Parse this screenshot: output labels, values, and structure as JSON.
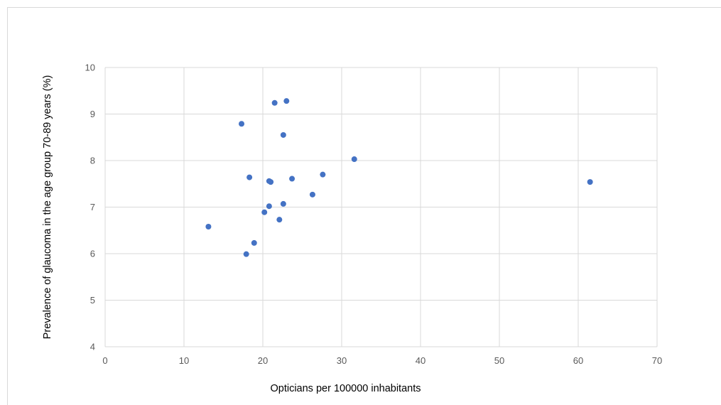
{
  "chart_data": {
    "type": "scatter",
    "title": "",
    "xlabel": "Opticians per 100000 inhabitants",
    "ylabel": "Prevalence of glaucoma in the age group 70-89 years (%)",
    "xlim": [
      0,
      70
    ],
    "ylim": [
      4,
      10
    ],
    "xticks": [
      0,
      10,
      20,
      30,
      40,
      50,
      60,
      70
    ],
    "yticks": [
      4,
      5,
      6,
      7,
      8,
      9,
      10
    ],
    "xtick_labels": [
      "0",
      "10",
      "20",
      "30",
      "40",
      "50",
      "60",
      "70"
    ],
    "ytick_labels": [
      "4",
      "5",
      "6",
      "7",
      "8",
      "9",
      "10"
    ],
    "grid": true,
    "legend": "none",
    "marker_color": "#4472c4",
    "grid_color": "#d9d9d9",
    "points": [
      {
        "x": 13.1,
        "y": 6.58
      },
      {
        "x": 17.3,
        "y": 8.79
      },
      {
        "x": 17.9,
        "y": 5.99
      },
      {
        "x": 18.3,
        "y": 7.64
      },
      {
        "x": 18.9,
        "y": 6.23
      },
      {
        "x": 20.2,
        "y": 6.89
      },
      {
        "x": 20.8,
        "y": 7.02
      },
      {
        "x": 20.8,
        "y": 7.56
      },
      {
        "x": 21.0,
        "y": 7.54
      },
      {
        "x": 21.5,
        "y": 9.24
      },
      {
        "x": 22.1,
        "y": 6.73
      },
      {
        "x": 22.6,
        "y": 8.55
      },
      {
        "x": 22.6,
        "y": 7.07
      },
      {
        "x": 23.0,
        "y": 9.28
      },
      {
        "x": 23.7,
        "y": 7.61
      },
      {
        "x": 26.3,
        "y": 7.27
      },
      {
        "x": 27.6,
        "y": 7.7
      },
      {
        "x": 31.6,
        "y": 8.03
      },
      {
        "x": 61.5,
        "y": 7.54
      }
    ]
  }
}
